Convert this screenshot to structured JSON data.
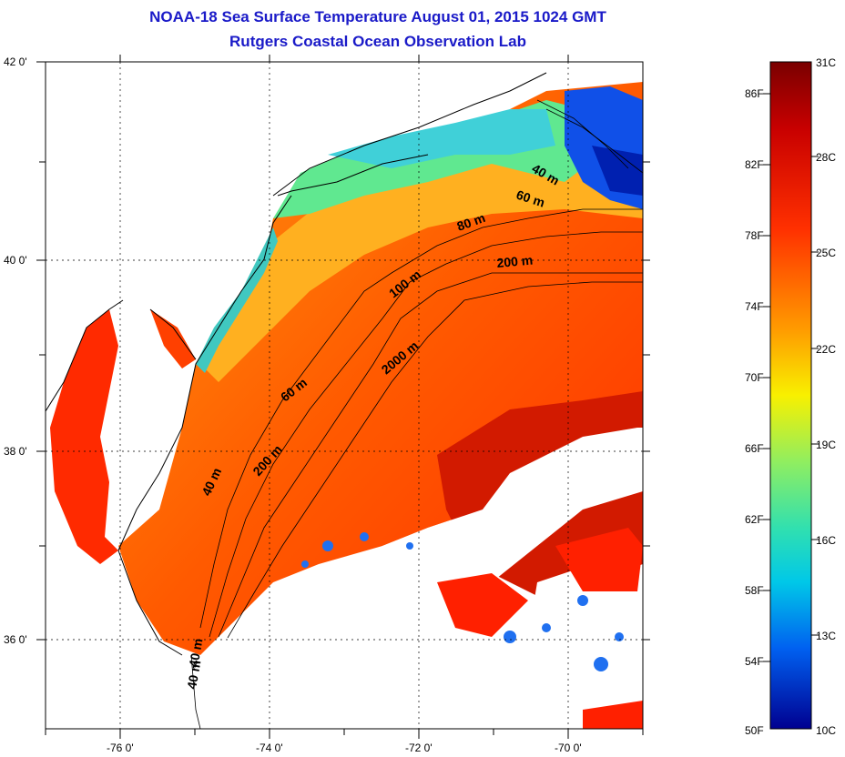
{
  "title": "NOAA-18 Sea Surface Temperature August 01, 2015 1024 GMT",
  "subtitle": "Rutgers Coastal Ocean Observation Lab",
  "map": {
    "lon_ticks": [
      "-76 0'",
      "-74 0'",
      "-72 0'",
      "-70 0'"
    ],
    "lat_ticks": [
      "42 0'",
      "40 0'",
      "38 0'",
      "36 0'"
    ],
    "contours": [
      "40 m",
      "60 m",
      "80 m",
      "200 m",
      "100 m",
      "2000 m",
      "60 m",
      "200 m",
      "40 m",
      "40 m",
      "40 m"
    ]
  },
  "colorbar": {
    "fahrenheit": [
      "86F",
      "82F",
      "78F",
      "74F",
      "70F",
      "66F",
      "62F",
      "58F",
      "54F",
      "50F"
    ],
    "celsius": [
      "31C",
      "28C",
      "25C",
      "22C",
      "19C",
      "16C",
      "13C",
      "10C"
    ],
    "colors": [
      "#7a0000",
      "#c80000",
      "#ff2a00",
      "#ff7a00",
      "#ffc800",
      "#f8f800",
      "#a0f050",
      "#40e0a0",
      "#00c8e0",
      "#0080f0",
      "#0030e0",
      "#000080"
    ]
  }
}
